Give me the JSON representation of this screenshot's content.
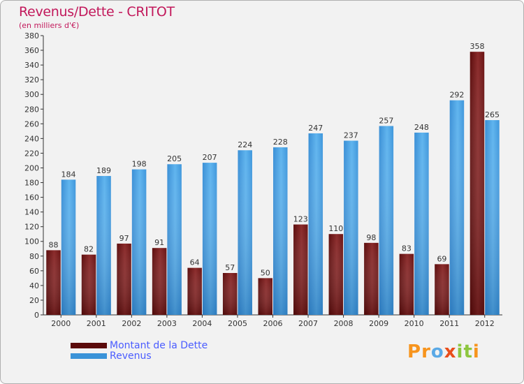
{
  "title": "Revenus/Dette - CRITOT",
  "subtitle": "(en milliers d'€)",
  "logo": {
    "text": "Proxiti",
    "letters": [
      "P",
      "r",
      "o",
      "x",
      "i",
      "t",
      "i"
    ],
    "colors": [
      "#f7941d",
      "#f7941d",
      "#5aa9e6",
      "#e94e1b",
      "#8dc63f",
      "#8dc63f",
      "#f7941d"
    ]
  },
  "colors": {
    "debt": "#7a1a1a",
    "revenue": "#4aa3e3",
    "title": "#c2185b",
    "legend_text": "#4a5cff"
  },
  "chart_data": {
    "type": "bar",
    "title": "Revenus/Dette - CRITOT",
    "xlabel": "",
    "ylabel": "(en milliers d'€)",
    "ylim": [
      0,
      380
    ],
    "ytick_step": 20,
    "grid": false,
    "legend_position": "bottom-left",
    "categories": [
      "2000",
      "2001",
      "2002",
      "2003",
      "2004",
      "2005",
      "2006",
      "2007",
      "2008",
      "2009",
      "2010",
      "2011",
      "2012"
    ],
    "series": [
      {
        "name": "Montant de la Dette",
        "key": "debt",
        "values": [
          88,
          82,
          97,
          91,
          64,
          57,
          50,
          123,
          110,
          98,
          83,
          69,
          358
        ]
      },
      {
        "name": "Revenus",
        "key": "revenue",
        "values": [
          184,
          189,
          198,
          205,
          207,
          224,
          228,
          247,
          237,
          257,
          248,
          292,
          265
        ]
      }
    ]
  }
}
